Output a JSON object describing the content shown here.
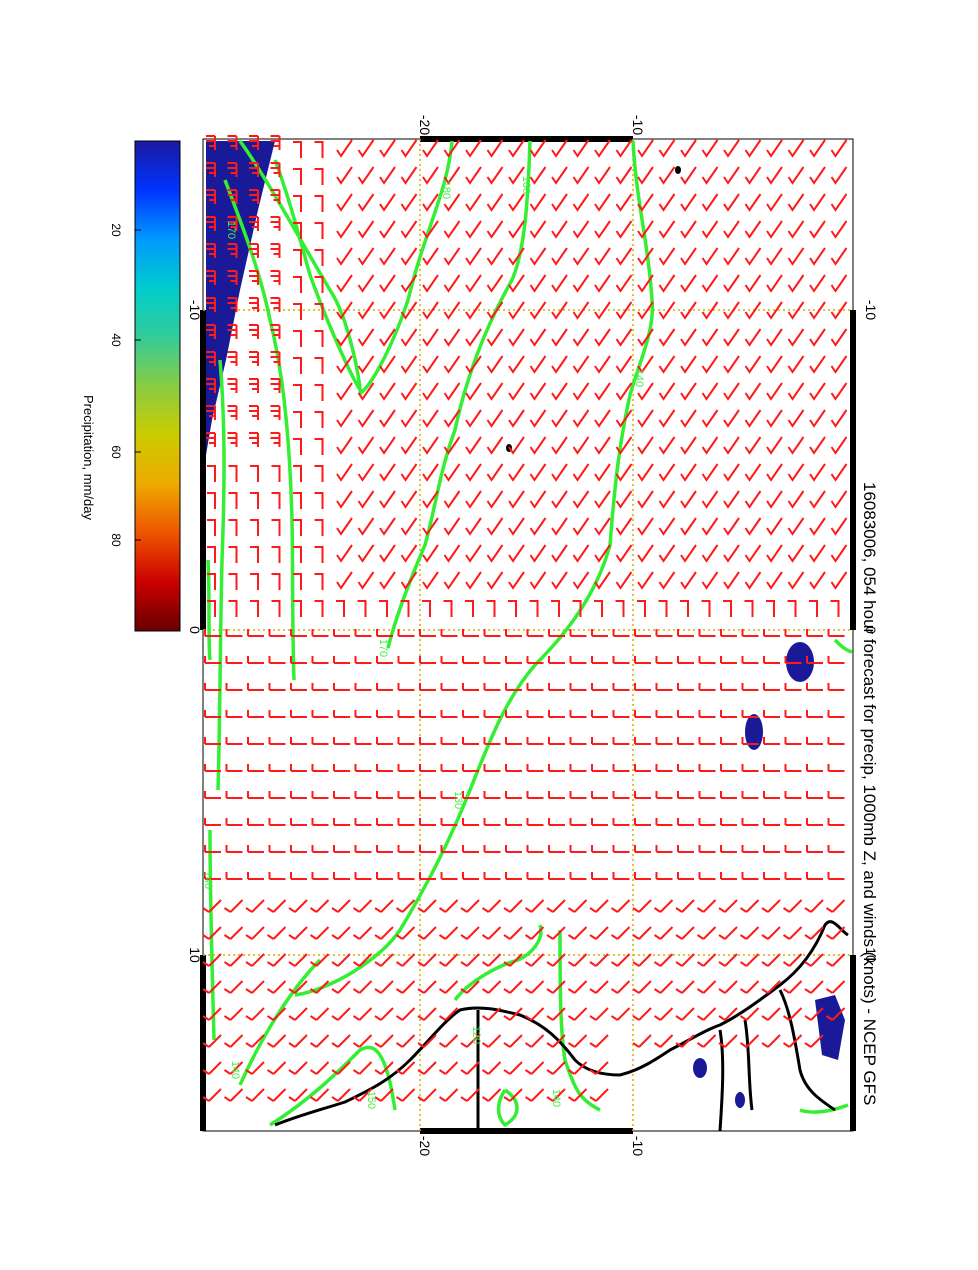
{
  "title": "16083006, 054 hour forecast for precip, 1000mb Z, and winds (knots) - NCEP GFS",
  "colorbar": {
    "label": "Precipitation, mm/day",
    "ticks": [
      "20",
      "40",
      "60",
      "80"
    ],
    "colors": [
      "#1a1aa0",
      "#0033ff",
      "#00aaff",
      "#00cccc",
      "#44cc88",
      "#99cc33",
      "#dddd00",
      "#ee9900",
      "#ee4400",
      "#cc0000",
      "#660000"
    ]
  },
  "axes": {
    "longitude_ticks_top": [
      "-10",
      "0",
      "10"
    ],
    "longitude_ticks_bottom": [
      "-10",
      "0",
      "10"
    ],
    "latitude_ticks_left": [
      "-20",
      "-10"
    ],
    "latitude_ticks_right": [
      "-20",
      "-10"
    ]
  },
  "contour_labels": [
    "180",
    "160",
    "140",
    "170",
    "130",
    "120",
    "140",
    "150",
    "140",
    "170",
    "140"
  ],
  "colors": {
    "wind_barbs": "#ff1a1a",
    "height_contours": "#33ee33",
    "precip": "#1a1a99",
    "coastline": "#000000",
    "grid": "#ddaa00"
  }
}
